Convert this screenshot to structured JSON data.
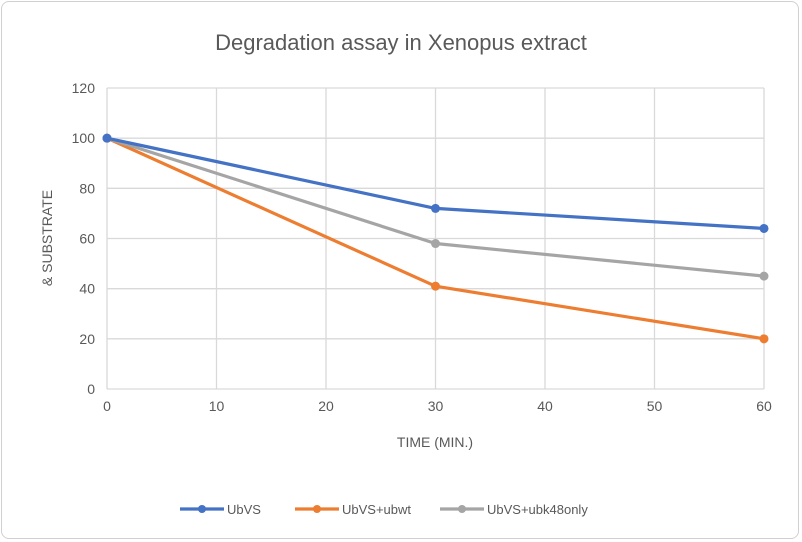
{
  "chart_data": {
    "type": "line",
    "title": "Degradation assay in Xenopus extract",
    "xlabel": "TIME (MIN.)",
    "ylabel": "& SUBSTRATE",
    "x": [
      0,
      30,
      60
    ],
    "xlim": [
      0,
      60
    ],
    "ylim": [
      0,
      120
    ],
    "xticks": [
      0,
      10,
      20,
      30,
      40,
      50,
      60
    ],
    "yticks": [
      0,
      20,
      40,
      60,
      80,
      100,
      120
    ],
    "grid": true,
    "legend_position": "bottom",
    "series": [
      {
        "name": "UbVS",
        "color": "#4472C4",
        "values": [
          100,
          72,
          64
        ]
      },
      {
        "name": "UbVS+ubwt",
        "color": "#ED7D31",
        "values": [
          100,
          41,
          20
        ]
      },
      {
        "name": "UbVS+ubk48only",
        "color": "#A5A5A5",
        "values": [
          100,
          58,
          45
        ]
      }
    ]
  }
}
